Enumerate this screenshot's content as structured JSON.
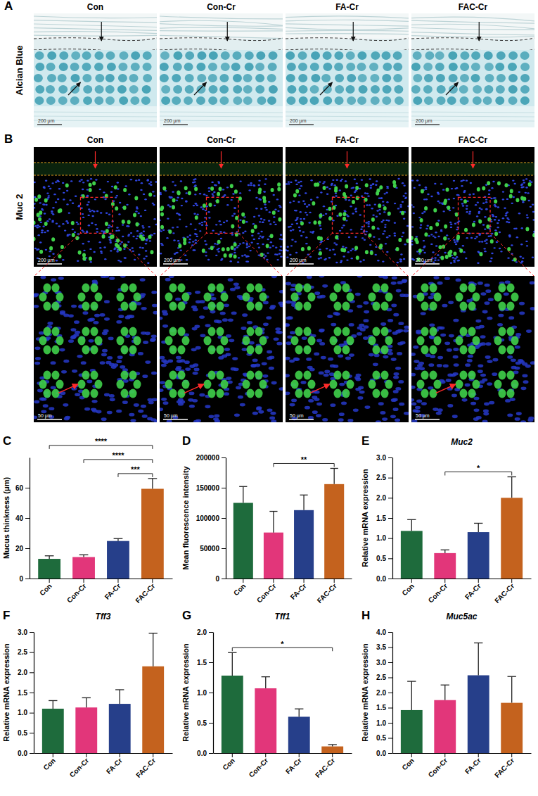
{
  "micrographs": [
    {
      "panel": "A",
      "row_label": "Alcian Blue",
      "columns": [
        "Con",
        "Con-Cr",
        "FA-Cr",
        "FAC-Cr"
      ],
      "scale_bar": "200 μm"
    },
    {
      "panel": "B",
      "row_label": "Muc 2",
      "columns": [
        "Con",
        "Con-Cr",
        "FA-Cr",
        "FAC-Cr"
      ],
      "scale_bar": "200 μm",
      "inset_scale_bar": "50 μm"
    }
  ],
  "chart_data": [
    {
      "type": "bar",
      "panel": "C",
      "y_label": "Mucus thinkness (μm)",
      "categories": [
        "Con",
        "Con-Cr",
        "FA-Cr",
        "FAC-Cr"
      ],
      "values": [
        13,
        14.2,
        24.8,
        59.3
      ],
      "errors": [
        2,
        1.5,
        1.6,
        6.8
      ],
      "colors": [
        "#1e6b3c",
        "#e2367a",
        "#263f8a",
        "#c4621e"
      ],
      "ylim": [
        0,
        80
      ],
      "yticks": [
        0,
        20,
        40,
        60
      ],
      "annotations": [
        {
          "between": [
            "FA-Cr",
            "FAC-Cr"
          ],
          "text": "***"
        },
        {
          "between": [
            "Con-Cr",
            "FAC-Cr"
          ],
          "text": "****"
        },
        {
          "between": [
            "Con",
            "FAC-Cr"
          ],
          "text": "****"
        }
      ]
    },
    {
      "type": "bar",
      "panel": "D",
      "y_label": "Mean fluorescence intensity",
      "categories": [
        "Con",
        "Con-Cr",
        "FA-Cr",
        "FAC-Cr"
      ],
      "values": [
        125000,
        76000,
        113000,
        156000
      ],
      "errors": [
        27000,
        35000,
        25000,
        26000
      ],
      "colors": [
        "#1e6b3c",
        "#e2367a",
        "#263f8a",
        "#c4621e"
      ],
      "ylim": [
        0,
        200000
      ],
      "yticks": [
        0,
        50000,
        100000,
        150000,
        200000
      ],
      "annotations": [
        {
          "between": [
            "Con-Cr",
            "FAC-Cr"
          ],
          "text": "**"
        }
      ]
    },
    {
      "type": "bar",
      "panel": "E",
      "title": "Muc2",
      "y_label": "Relative mRNA expression",
      "categories": [
        "Con",
        "Con-Cr",
        "FA-Cr",
        "FAC-Cr"
      ],
      "values": [
        1.18,
        0.63,
        1.15,
        2.0
      ],
      "errors": [
        0.28,
        0.08,
        0.22,
        0.52
      ],
      "colors": [
        "#1e6b3c",
        "#e2367a",
        "#263f8a",
        "#c4621e"
      ],
      "ylim": [
        0,
        3
      ],
      "yticks": [
        {
          "value": 0,
          "label": "0.0"
        },
        {
          "value": 0.5,
          "label": "0.5"
        },
        {
          "value": 1,
          "label": "1.0"
        },
        {
          "value": 1.5,
          "label": "1.5"
        },
        {
          "value": 2,
          "label": "2.0"
        },
        {
          "value": 2.5,
          "label": "2.5"
        },
        {
          "value": 3,
          "label": "3.0"
        }
      ],
      "annotations": [
        {
          "between": [
            "Con-Cr",
            "FAC-Cr"
          ],
          "text": "*"
        }
      ]
    },
    {
      "type": "bar",
      "panel": "F",
      "title": "Tff3",
      "y_label": "Relative mRNA expression",
      "categories": [
        "Con",
        "Con-Cr",
        "FA-Cr",
        "FAC-Cr"
      ],
      "values": [
        1.1,
        1.13,
        1.22,
        2.15
      ],
      "errors": [
        0.2,
        0.24,
        0.35,
        0.82
      ],
      "colors": [
        "#1e6b3c",
        "#e2367a",
        "#263f8a",
        "#c4621e"
      ],
      "ylim": [
        0,
        3
      ],
      "yticks": [
        {
          "value": 0,
          "label": "0.0"
        },
        {
          "value": 0.5,
          "label": "0.5"
        },
        {
          "value": 1,
          "label": "1.0"
        },
        {
          "value": 1.5,
          "label": "1.5"
        },
        {
          "value": 2,
          "label": "2.0"
        },
        {
          "value": 2.5,
          "label": "2.5"
        },
        {
          "value": 3,
          "label": "3.0"
        }
      ]
    },
    {
      "type": "bar",
      "panel": "G",
      "title": "Tff1",
      "y_label": "Relative mRNA expression",
      "categories": [
        "Con",
        "Con-Cr",
        "FA-Cr",
        "FAC-Cr"
      ],
      "values": [
        1.28,
        1.07,
        0.6,
        0.11
      ],
      "errors": [
        0.38,
        0.19,
        0.13,
        0.03
      ],
      "colors": [
        "#1e6b3c",
        "#e2367a",
        "#263f8a",
        "#c4621e"
      ],
      "ylim": [
        0,
        2
      ],
      "yticks": [
        {
          "value": 0,
          "label": "0.0"
        },
        {
          "value": 0.5,
          "label": "0.5"
        },
        {
          "value": 1,
          "label": "1.0"
        },
        {
          "value": 1.5,
          "label": "1.5"
        },
        {
          "value": 2,
          "label": "2.0"
        }
      ],
      "annotations": [
        {
          "between": [
            "Con",
            "FAC-Cr"
          ],
          "text": "*"
        }
      ]
    },
    {
      "type": "bar",
      "panel": "H",
      "title": "Muc5ac",
      "y_label": "Relative mRNA expression",
      "categories": [
        "Con",
        "Con-Cr",
        "FA-Cr",
        "FAC-Cr"
      ],
      "values": [
        1.42,
        1.75,
        2.57,
        1.66
      ],
      "errors": [
        0.95,
        0.5,
        1.07,
        0.87
      ],
      "colors": [
        "#1e6b3c",
        "#e2367a",
        "#263f8a",
        "#c4621e"
      ],
      "ylim": [
        0,
        4
      ],
      "yticks": [
        {
          "value": 0,
          "label": "0.0"
        },
        {
          "value": 0.5,
          "label": "0.5"
        },
        {
          "value": 1,
          "label": "1.0"
        },
        {
          "value": 1.5,
          "label": "1.5"
        },
        {
          "value": 2,
          "label": "2.0"
        },
        {
          "value": 2.5,
          "label": "2.5"
        },
        {
          "value": 3,
          "label": "3.0"
        },
        {
          "value": 3.5,
          "label": "3.5"
        },
        {
          "value": 4,
          "label": "4.0"
        }
      ]
    }
  ]
}
